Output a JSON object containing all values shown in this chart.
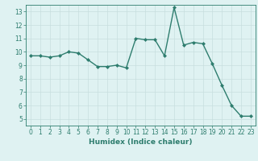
{
  "x": [
    0,
    1,
    2,
    3,
    4,
    5,
    6,
    7,
    8,
    9,
    10,
    11,
    12,
    13,
    14,
    15,
    16,
    17,
    18,
    19,
    20,
    21,
    22,
    23
  ],
  "y": [
    9.7,
    9.7,
    9.6,
    9.7,
    10.0,
    9.9,
    9.4,
    8.9,
    8.9,
    9.0,
    8.8,
    11.0,
    10.9,
    10.9,
    9.7,
    13.3,
    10.5,
    10.7,
    10.6,
    9.1,
    7.5,
    6.0,
    5.2,
    5.2
  ],
  "line_color": "#2e7d6e",
  "marker": "D",
  "markersize": 2.0,
  "linewidth": 1.0,
  "xlabel": "Humidex (Indice chaleur)",
  "xlim": [
    -0.5,
    23.5
  ],
  "ylim": [
    4.5,
    13.5
  ],
  "yticks": [
    5,
    6,
    7,
    8,
    9,
    10,
    11,
    12,
    13
  ],
  "xticks": [
    0,
    1,
    2,
    3,
    4,
    5,
    6,
    7,
    8,
    9,
    10,
    11,
    12,
    13,
    14,
    15,
    16,
    17,
    18,
    19,
    20,
    21,
    22,
    23
  ],
  "background_color": "#dff2f2",
  "grid_color": "#c8dede",
  "line_grid_color": "#d4e8e8",
  "tick_color": "#2e7d6e",
  "label_color": "#2e7d6e",
  "xlabel_fontsize": 6.5,
  "tick_fontsize": 5.5
}
